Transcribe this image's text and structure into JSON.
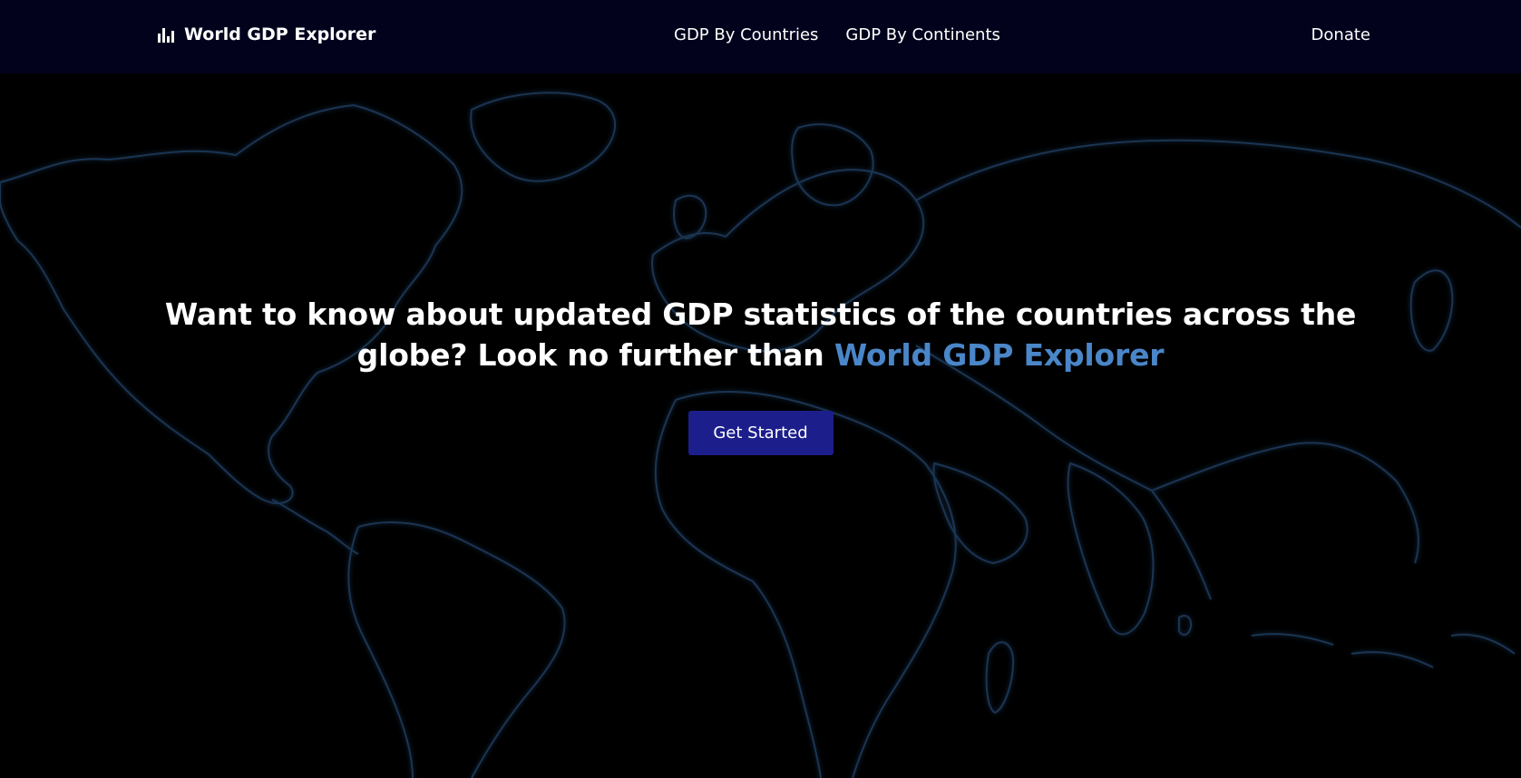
{
  "navbar": {
    "brand": "World GDP Explorer",
    "brand_icon": "bar-chart-icon",
    "links": [
      {
        "label": "GDP By Countries"
      },
      {
        "label": "GDP By Continents"
      }
    ],
    "donate": "Donate"
  },
  "hero": {
    "headline": "Want to know about updated GDP statistics of the countries across the globe? Look no further than ",
    "headline_highlight": "World GDP Explorer",
    "cta_label": "Get Started"
  },
  "colors": {
    "navbar_bg": "#02021d",
    "page_bg": "#000000",
    "accent": "#4a86c8",
    "button_bg": "#1c1e8c",
    "map_outline": "#1e3a5c"
  }
}
